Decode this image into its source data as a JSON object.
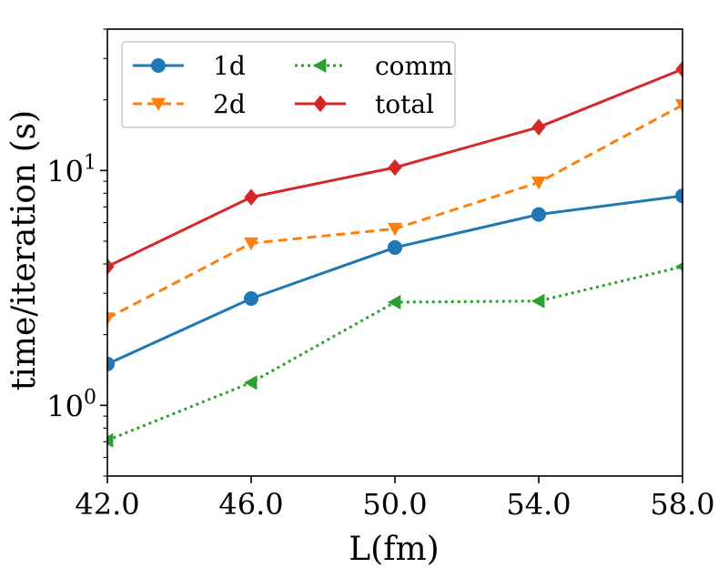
{
  "chart_data": {
    "type": "line",
    "y_scale": "log",
    "title": "",
    "xlabel": "L(fm)",
    "ylabel": "time/iteration (s)",
    "xlim": [
      42.0,
      58.0
    ],
    "ylim": [
      0.5,
      40
    ],
    "x": [
      42.0,
      46.0,
      50.0,
      54.0,
      58.0
    ],
    "x_tick_labels": [
      "42.0",
      "46.0",
      "50.0",
      "54.0",
      "58.0"
    ],
    "y_tick_labels": [
      {
        "base": "10",
        "exp": "0",
        "value": 1
      },
      {
        "base": "10",
        "exp": "1",
        "value": 10
      }
    ],
    "grid": false,
    "legend_position": "top-left",
    "series": [
      {
        "name": "1d",
        "values": [
          1.5,
          2.85,
          4.7,
          6.5,
          7.8
        ],
        "color": "#1f77b4",
        "line": "solid",
        "marker": "circle"
      },
      {
        "name": "2d",
        "values": [
          2.35,
          4.9,
          5.65,
          8.9,
          19.0
        ],
        "color": "#ff7f0e",
        "line": "dashed",
        "marker": "triangle-down"
      },
      {
        "name": "comm",
        "values": [
          0.71,
          1.25,
          2.75,
          2.78,
          3.9
        ],
        "color": "#2ca02c",
        "line": "dotted",
        "marker": "triangle-left"
      },
      {
        "name": "total",
        "values": [
          3.9,
          7.7,
          10.3,
          15.3,
          27.0
        ],
        "color": "#d62728",
        "line": "solid",
        "marker": "diamond"
      }
    ]
  }
}
